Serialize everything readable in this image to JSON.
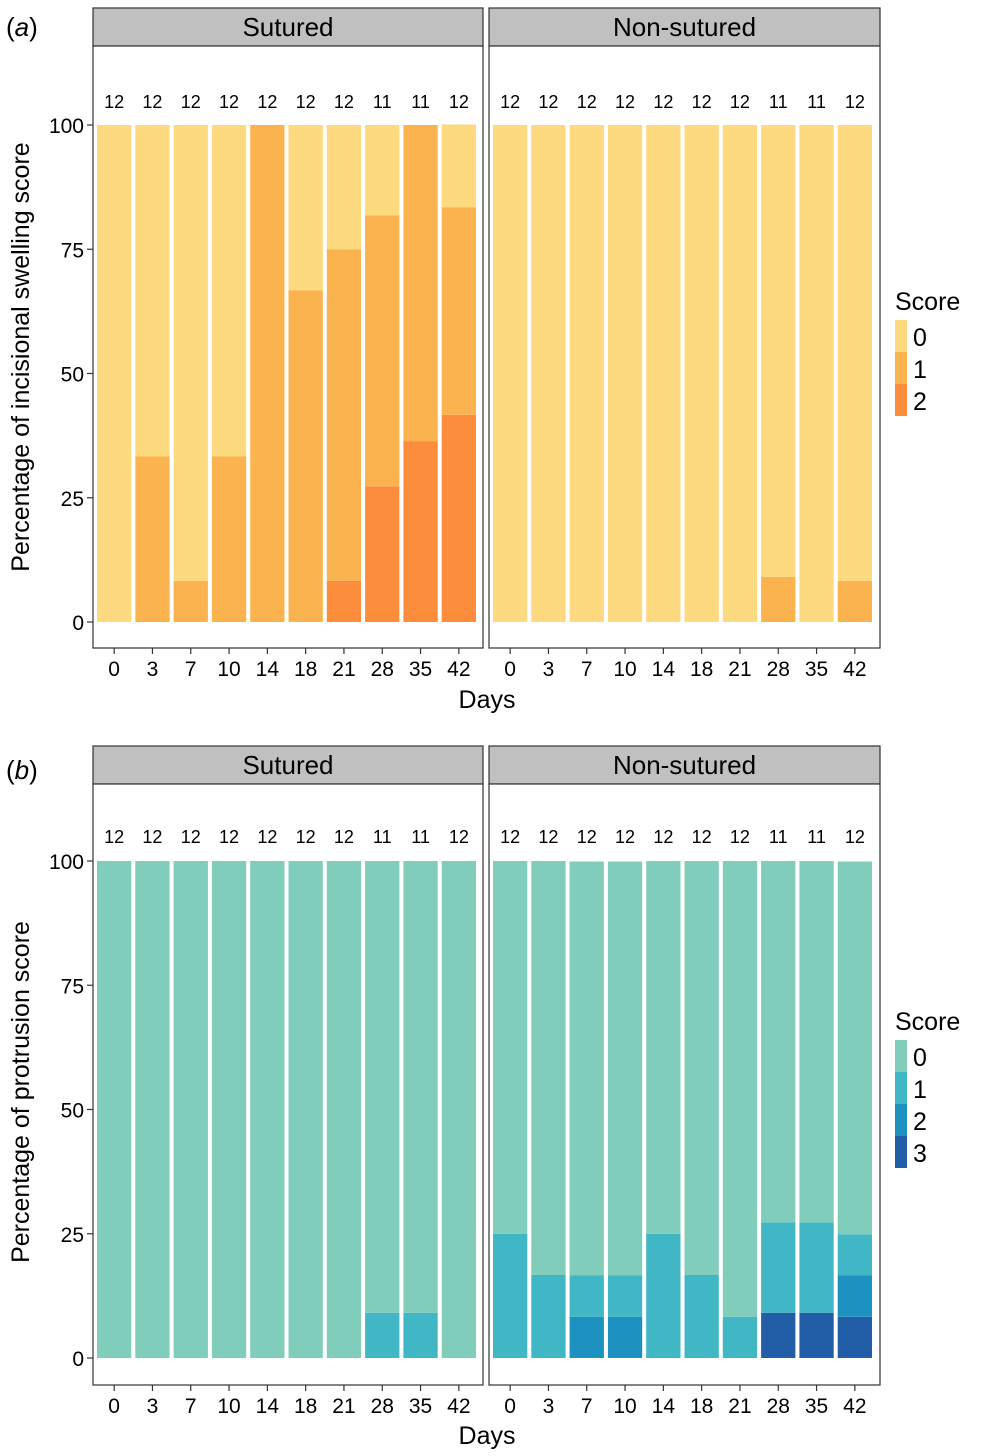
{
  "chart_data": [
    {
      "type": "bar",
      "stacked": true,
      "panel_label": "(a)",
      "ylabel": "Percentage of incisional swelling score",
      "xlabel": "Days",
      "ylim": [
        0,
        100
      ],
      "yticks": [
        0,
        25,
        50,
        75,
        100
      ],
      "categories": [
        "0",
        "3",
        "7",
        "10",
        "14",
        "18",
        "21",
        "28",
        "35",
        "42"
      ],
      "legend": {
        "title": "Score",
        "entries": [
          {
            "label": "0",
            "color": "#FDD97F"
          },
          {
            "label": "1",
            "color": "#FBB34F"
          },
          {
            "label": "2",
            "color": "#FC8D3C"
          }
        ]
      },
      "facets": [
        {
          "name": "Sutured",
          "counts": [
            "12",
            "12",
            "12",
            "12",
            "12",
            "12",
            "12",
            "11",
            "11",
            "12"
          ],
          "series": [
            {
              "name": "0",
              "values": [
                100,
                66.7,
                91.7,
                66.7,
                0,
                33.3,
                25,
                18.2,
                0,
                16.7
              ]
            },
            {
              "name": "1",
              "values": [
                0,
                33.3,
                8.3,
                33.3,
                100,
                66.7,
                66.7,
                54.5,
                63.6,
                41.7
              ]
            },
            {
              "name": "2",
              "values": [
                0,
                0,
                0,
                0,
                0,
                0,
                8.3,
                27.3,
                36.4,
                41.7
              ]
            }
          ]
        },
        {
          "name": "Non-sutured",
          "counts": [
            "12",
            "12",
            "12",
            "12",
            "12",
            "12",
            "12",
            "11",
            "11",
            "12"
          ],
          "series": [
            {
              "name": "0",
              "values": [
                100,
                100,
                100,
                100,
                100,
                100,
                100,
                90.9,
                100,
                91.7
              ]
            },
            {
              "name": "1",
              "values": [
                0,
                0,
                0,
                0,
                0,
                0,
                0,
                9.1,
                0,
                8.3
              ]
            },
            {
              "name": "2",
              "values": [
                0,
                0,
                0,
                0,
                0,
                0,
                0,
                0,
                0,
                0
              ]
            }
          ]
        }
      ]
    },
    {
      "type": "bar",
      "stacked": true,
      "panel_label": "(b)",
      "ylabel": "Percentage of protrusion score",
      "xlabel": "Days",
      "ylim": [
        0,
        100
      ],
      "yticks": [
        0,
        25,
        50,
        75,
        100
      ],
      "categories": [
        "0",
        "3",
        "7",
        "10",
        "14",
        "18",
        "21",
        "28",
        "35",
        "42"
      ],
      "legend": {
        "title": "Score",
        "entries": [
          {
            "label": "0",
            "color": "#80CDBB"
          },
          {
            "label": "1",
            "color": "#41B6C4"
          },
          {
            "label": "2",
            "color": "#1D91C0"
          },
          {
            "label": "3",
            "color": "#225EA8"
          }
        ]
      },
      "facets": [
        {
          "name": "Sutured",
          "counts": [
            "12",
            "12",
            "12",
            "12",
            "12",
            "12",
            "12",
            "11",
            "11",
            "12"
          ],
          "series": [
            {
              "name": "0",
              "values": [
                100,
                100,
                100,
                100,
                100,
                100,
                100,
                90.9,
                90.9,
                100
              ]
            },
            {
              "name": "1",
              "values": [
                0,
                0,
                0,
                0,
                0,
                0,
                0,
                9.1,
                9.1,
                0
              ]
            },
            {
              "name": "2",
              "values": [
                0,
                0,
                0,
                0,
                0,
                0,
                0,
                0,
                0,
                0
              ]
            },
            {
              "name": "3",
              "values": [
                0,
                0,
                0,
                0,
                0,
                0,
                0,
                0,
                0,
                0
              ]
            }
          ]
        },
        {
          "name": "Non-sutured",
          "counts": [
            "12",
            "12",
            "12",
            "12",
            "12",
            "12",
            "12",
            "11",
            "11",
            "12"
          ],
          "series": [
            {
              "name": "0",
              "values": [
                75,
                83.3,
                83.3,
                83.3,
                75,
                83.3,
                91.7,
                72.7,
                72.7,
                75
              ]
            },
            {
              "name": "1",
              "values": [
                25,
                16.7,
                8.3,
                8.3,
                25,
                16.7,
                8.3,
                18.2,
                18.2,
                8.3
              ]
            },
            {
              "name": "2",
              "values": [
                0,
                0,
                8.3,
                8.3,
                0,
                0,
                0,
                0,
                0,
                8.3
              ]
            },
            {
              "name": "3",
              "values": [
                0,
                0,
                0,
                0,
                0,
                0,
                0,
                9.1,
                9.1,
                8.3
              ]
            }
          ]
        }
      ]
    }
  ]
}
